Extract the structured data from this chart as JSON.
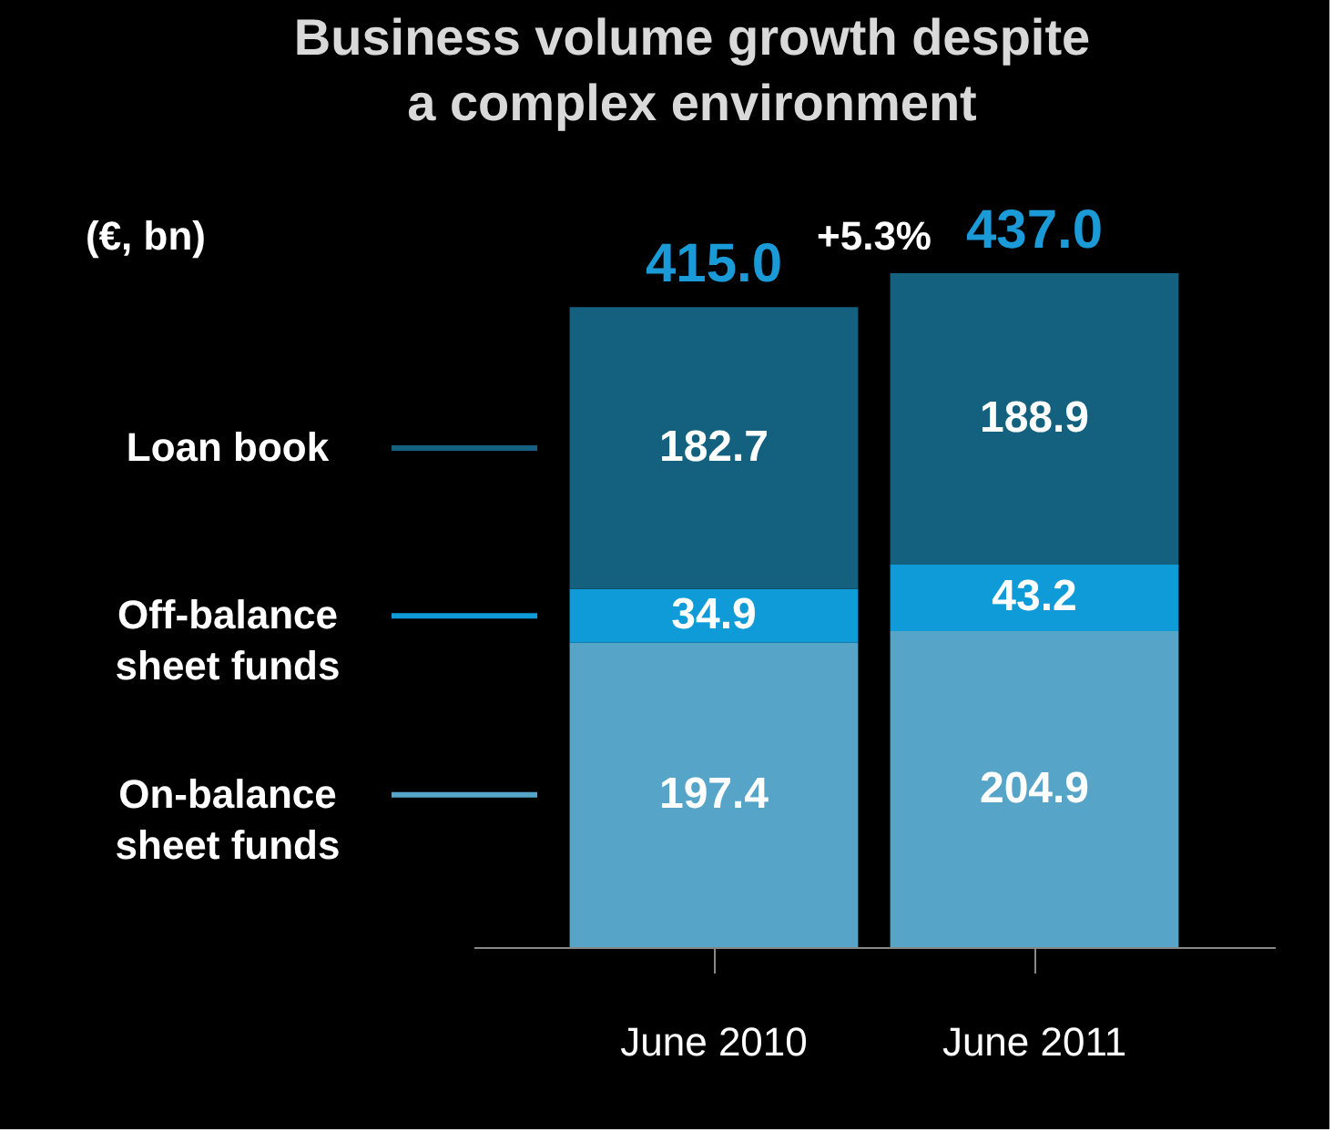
{
  "chart_data": {
    "type": "bar",
    "title": "Business volume growth despite a complex environment",
    "stacked": true,
    "data_labels": true,
    "legend": "left",
    "grid": false,
    "categories": [
      "June 2010",
      "June 2011"
    ],
    "series": [
      {
        "name": "On-balance sheet funds",
        "color": "#56a5c8",
        "values": [
          197.4,
          204.9
        ]
      },
      {
        "name": "Off-balance sheet funds",
        "color": "#0f9bd7",
        "values": [
          34.9,
          43.2
        ]
      },
      {
        "name": "Loan book",
        "color": "#14617f",
        "values": [
          182.7,
          188.9
        ]
      }
    ],
    "totals": [
      "415.0",
      "437.0"
    ],
    "annotations": [
      "(€, bn)",
      "+5.3%"
    ]
  }
}
